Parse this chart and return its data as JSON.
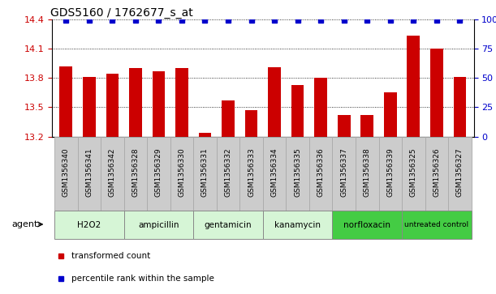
{
  "title": "GDS5160 / 1762677_s_at",
  "samples": [
    "GSM1356340",
    "GSM1356341",
    "GSM1356342",
    "GSM1356328",
    "GSM1356329",
    "GSM1356330",
    "GSM1356331",
    "GSM1356332",
    "GSM1356333",
    "GSM1356334",
    "GSM1356335",
    "GSM1356336",
    "GSM1356337",
    "GSM1356338",
    "GSM1356339",
    "GSM1356325",
    "GSM1356326",
    "GSM1356327"
  ],
  "values": [
    13.92,
    13.81,
    13.84,
    13.9,
    13.87,
    13.9,
    13.24,
    13.57,
    13.47,
    13.91,
    13.73,
    13.8,
    13.42,
    13.42,
    13.65,
    14.23,
    14.1,
    13.81
  ],
  "groups": [
    {
      "name": "H2O2",
      "start": 0,
      "end": 3,
      "color": "#d6f5d6"
    },
    {
      "name": "ampicillin",
      "start": 3,
      "end": 6,
      "color": "#d6f5d6"
    },
    {
      "name": "gentamicin",
      "start": 6,
      "end": 9,
      "color": "#d6f5d6"
    },
    {
      "name": "kanamycin",
      "start": 9,
      "end": 12,
      "color": "#d6f5d6"
    },
    {
      "name": "norfloxacin",
      "start": 12,
      "end": 15,
      "color": "#44cc44"
    },
    {
      "name": "untreated control",
      "start": 15,
      "end": 18,
      "color": "#44cc44"
    }
  ],
  "bar_color": "#cc0000",
  "dot_color": "#0000cc",
  "ylim_left": [
    13.2,
    14.4
  ],
  "ylim_right": [
    0,
    100
  ],
  "yticks_left": [
    13.2,
    13.5,
    13.8,
    14.1,
    14.4
  ],
  "ytick_labels_left": [
    "13.2",
    "13.5",
    "13.8",
    "14.1",
    "14.4"
  ],
  "yticks_right": [
    0,
    25,
    50,
    75,
    100
  ],
  "ytick_labels_right": [
    "0",
    "25",
    "50",
    "75",
    "100%"
  ],
  "agent_label": "agent",
  "bg_color": "#ffffff",
  "sample_box_color": "#cccccc",
  "sample_box_edge": "#aaaaaa",
  "grid_color": "#000000"
}
